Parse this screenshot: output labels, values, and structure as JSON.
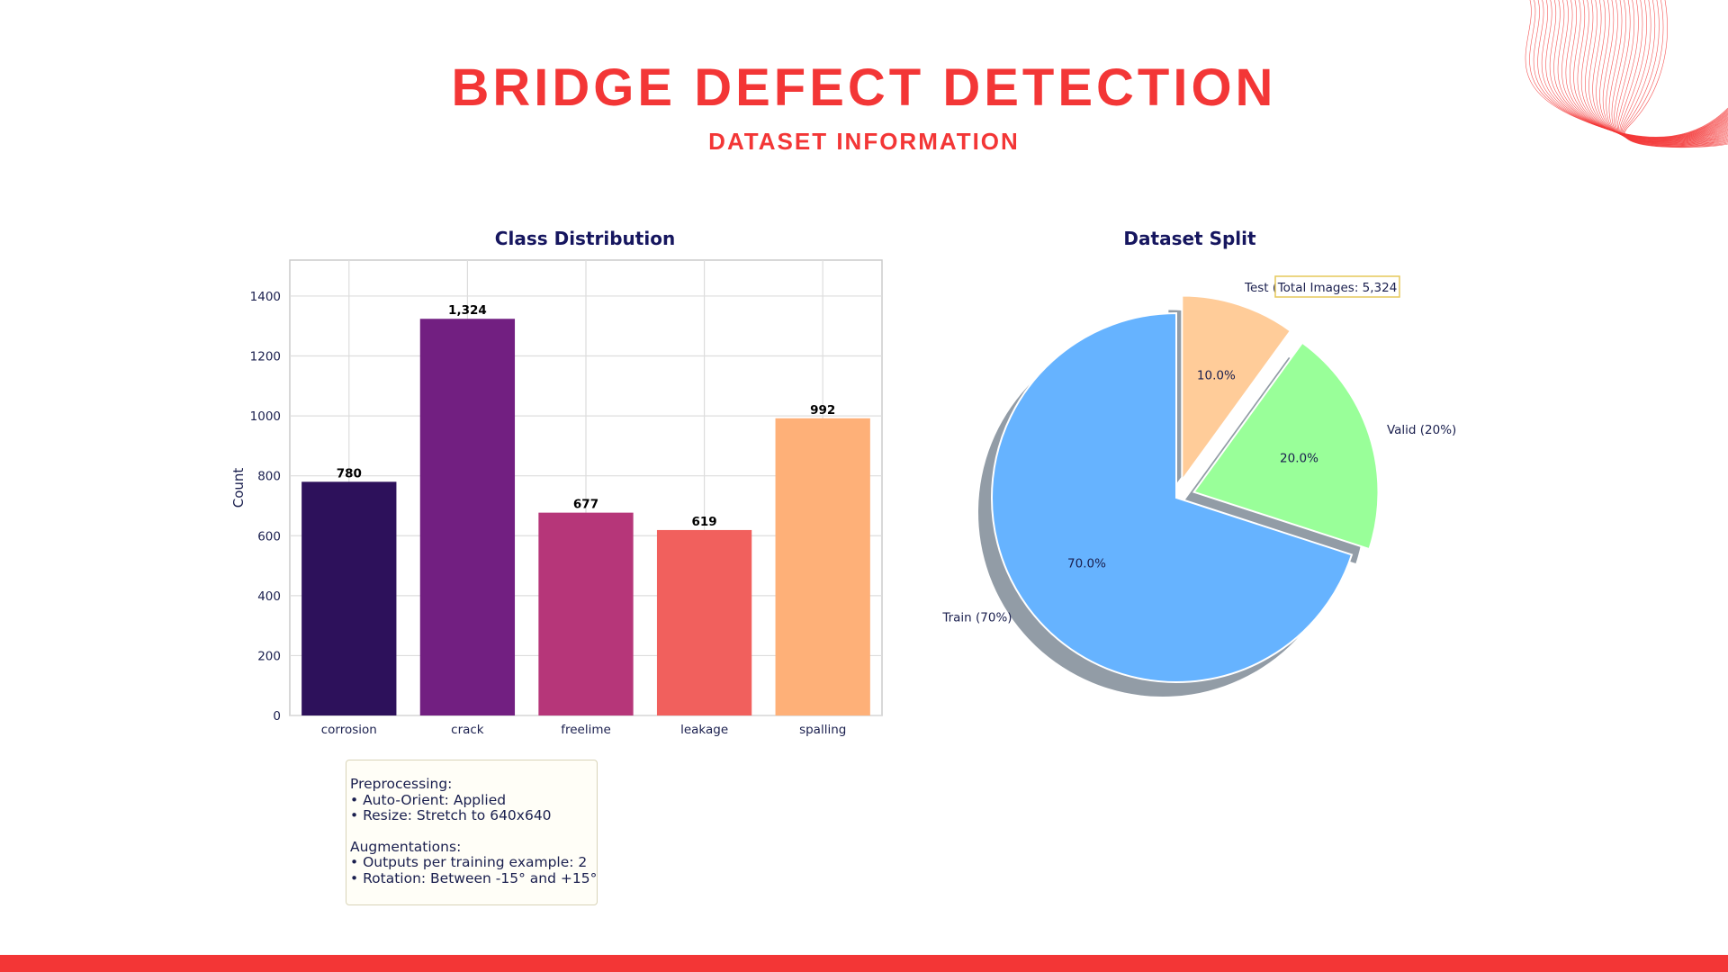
{
  "header": {
    "title": "BRIDGE DEFECT DETECTION",
    "subtitle": "DATASET INFORMATION"
  },
  "colors": {
    "accent": "#f33636",
    "chart_title": "#16165f",
    "axis_text": "#1a1f4e"
  },
  "chart_data": [
    {
      "type": "bar",
      "title": "Class Distribution",
      "xlabel": "",
      "ylabel": "Count",
      "categories": [
        "corrosion",
        "crack",
        "freelime",
        "leakage",
        "spalling"
      ],
      "values": [
        780,
        1324,
        677,
        619,
        992
      ],
      "value_labels": [
        "780",
        "1,324",
        "677",
        "619",
        "992"
      ],
      "bar_colors": [
        "#2d115b",
        "#721f81",
        "#b63679",
        "#f1605d",
        "#feb078"
      ],
      "ylim": [
        0,
        1520
      ],
      "yticks": [
        0,
        200,
        400,
        600,
        800,
        1000,
        1200,
        1400
      ],
      "grid": true
    },
    {
      "type": "pie",
      "title": "Dataset Split",
      "slices": [
        {
          "label": "Train (70%)",
          "value": 70,
          "pct_label": "70.0%",
          "color": "#66b3ff",
          "explode": false
        },
        {
          "label": "Valid (20%)",
          "value": 20,
          "pct_label": "20.0%",
          "color": "#99ff99",
          "explode": true
        },
        {
          "label": "Test (10%)",
          "value": 10,
          "pct_label": "10.0%",
          "color": "#ffcc99",
          "explode": true
        }
      ],
      "start_angle_deg": 90,
      "shadow": true,
      "annotation": "Total Images: 5,324"
    }
  ],
  "info_box": {
    "preprocessing_title": "Preprocessing:",
    "preprocessing_items": [
      "• Auto-Orient: Applied",
      "• Resize: Stretch to 640x640"
    ],
    "augmentations_title": "Augmentations:",
    "augmentation_items": [
      "• Outputs per training example: 2",
      "• Rotation: Between -15° and +15°"
    ]
  }
}
